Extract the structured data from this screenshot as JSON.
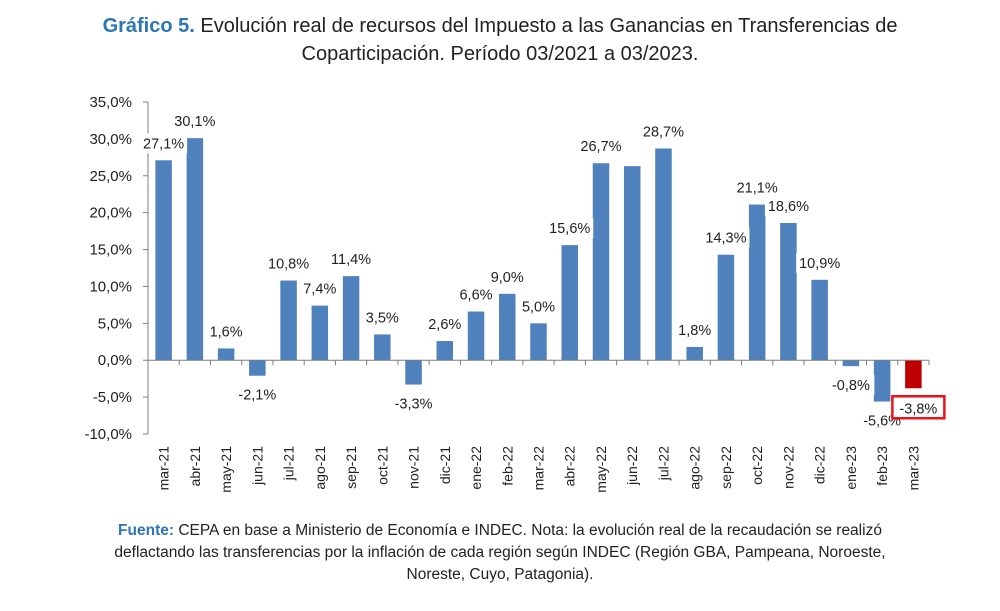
{
  "title": {
    "prefix": "Gráfico 5.",
    "line1": " Evolución real de recursos del Impuesto a las Ganancias en Transferencias de",
    "line2": "Coparticipación. Período 03/2021 a 03/2023."
  },
  "footer": {
    "prefix": "Fuente:",
    "line1": " CEPA en base a Ministerio de Economía e INDEC. Nota: la evolución real de la recaudación se realizó",
    "line2": "deflactando las transferencias por la inflación de cada región según INDEC (Región GBA, Pampeana, Noroeste,",
    "line3": "Noreste, Cuyo, Patagonia)."
  },
  "chart_data": {
    "type": "bar",
    "categories": [
      "mar-21",
      "abr-21",
      "may-21",
      "jun-21",
      "jul-21",
      "ago-21",
      "sep-21",
      "oct-21",
      "nov-21",
      "dic-21",
      "ene-22",
      "feb-22",
      "mar-22",
      "abr-22",
      "may-22",
      "jun-22",
      "jul-22",
      "ago-22",
      "sep-22",
      "oct-22",
      "nov-22",
      "dic-22",
      "ene-23",
      "feb-23",
      "mar-23"
    ],
    "values": [
      27.1,
      30.1,
      1.6,
      -2.1,
      10.8,
      7.4,
      11.4,
      3.5,
      -3.3,
      2.6,
      6.6,
      9.0,
      5.0,
      15.6,
      26.7,
      26.3,
      28.7,
      1.8,
      14.3,
      21.1,
      18.6,
      10.9,
      -0.8,
      -5.6,
      -3.8
    ],
    "data_labels": [
      "27,1%",
      "30,1%",
      "1,6%",
      "-2,1%",
      "10,8%",
      "7,4%",
      "11,4%",
      "3,5%",
      "-3,3%",
      "2,6%",
      "6,6%",
      "9,0%",
      "5,0%",
      "15,6%",
      "26,7%",
      "",
      "28,7%",
      "1,8%",
      "14,3%",
      "21,1%",
      "18,6%",
      "10,9%",
      "-0,8%",
      "-5,6%",
      "-3,8%"
    ],
    "yticks": [
      "35,0%",
      "30,0%",
      "25,0%",
      "20,0%",
      "15,0%",
      "10,0%",
      "5,0%",
      "0,0%",
      "-5,0%",
      "-10,0%"
    ],
    "ylim": [
      -10,
      35
    ],
    "xlabel": "",
    "ylabel": "",
    "grid": false,
    "colors": {
      "bar": "#4f81bd",
      "highlight": "#c00000",
      "highlight_box": "#e8141c"
    },
    "highlight_index": 24
  }
}
